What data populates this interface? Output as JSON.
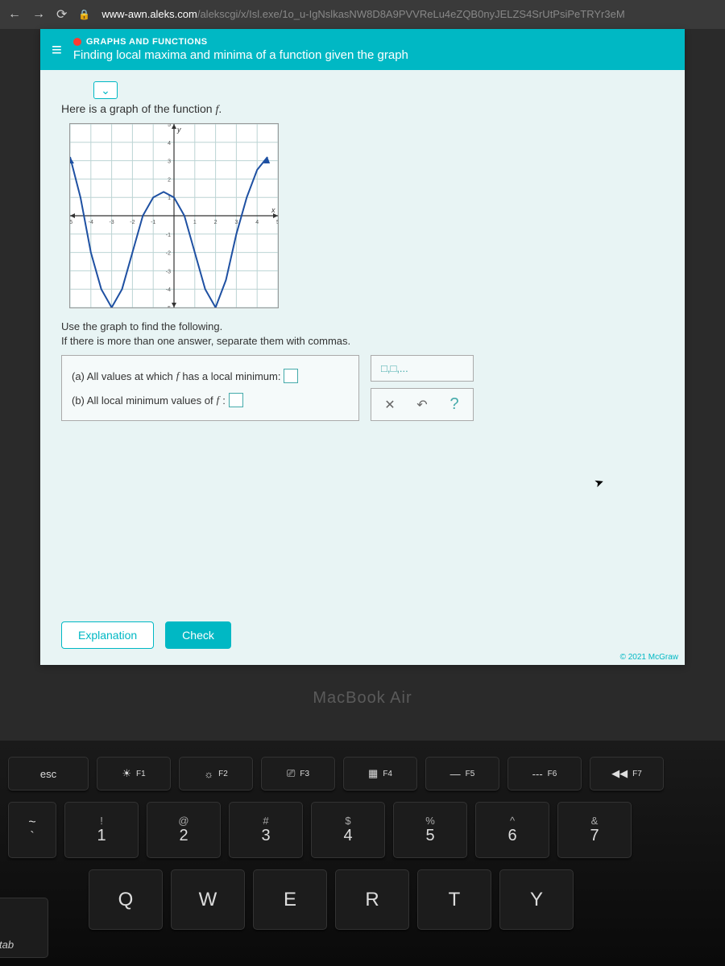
{
  "browser": {
    "url_host": "www-awn.aleks.com",
    "url_path": "/alekscgi/x/Isl.exe/1o_u-IgNslkasNW8D8A9PVVReLu4eZQB0nyJELZS4SrUtPsiPeTRYr3eM"
  },
  "header": {
    "category": "GRAPHS AND FUNCTIONS",
    "title": "Finding local maxima and minima of a function given the graph"
  },
  "intro_prefix": "Here is a graph of the function ",
  "intro_func": "f",
  "intro_suffix": ".",
  "instructions_line1": "Use the graph to find the following.",
  "instructions_line2": "If there is more than one answer, separate them with commas.",
  "questions": {
    "a_prefix": "(a) All values at which ",
    "a_func": "f",
    "a_suffix": " has a local minimum:",
    "b_prefix": "(b) All local minimum values of ",
    "b_func": "f",
    "b_suffix": ":"
  },
  "helper": {
    "comma_hint": "□,□,..."
  },
  "buttons": {
    "explanation": "Explanation",
    "check": "Check"
  },
  "copyright": "© 2021 McGraw",
  "macbook": "MacBook Air",
  "graph": {
    "xlim": [
      -5,
      5
    ],
    "ylim": [
      -5,
      5
    ],
    "tick_step": 1,
    "grid_color": "#bcd4d4",
    "axis_color": "#333333",
    "curve_color": "#1e50a2",
    "curve_width": 2,
    "points": [
      [
        -5,
        3.2
      ],
      [
        -4.5,
        1
      ],
      [
        -4,
        -2
      ],
      [
        -3.5,
        -4
      ],
      [
        -3,
        -5
      ],
      [
        -2.5,
        -4
      ],
      [
        -2,
        -2
      ],
      [
        -1.5,
        0
      ],
      [
        -1,
        1
      ],
      [
        -0.5,
        1.3
      ],
      [
        0,
        1
      ],
      [
        0.5,
        0
      ],
      [
        1,
        -2
      ],
      [
        1.5,
        -4
      ],
      [
        2,
        -5
      ],
      [
        2.5,
        -3.5
      ],
      [
        3,
        -1
      ],
      [
        3.5,
        1
      ],
      [
        4,
        2.5
      ],
      [
        4.5,
        3.2
      ]
    ]
  },
  "keyboard": {
    "fkeys": [
      {
        "sym": "☀",
        "label": "F1"
      },
      {
        "sym": "☼",
        "label": "F2"
      },
      {
        "sym": "⎚",
        "label": "F3"
      },
      {
        "sym": "▦",
        "label": "F4"
      },
      {
        "sym": "—",
        "label": "F5"
      },
      {
        "sym": "---",
        "label": "F6"
      },
      {
        "sym": "◀◀",
        "label": "F7"
      }
    ],
    "esc": "esc",
    "numrow": [
      {
        "top": "!",
        "bot": "1"
      },
      {
        "top": "@",
        "bot": "2"
      },
      {
        "top": "#",
        "bot": "3"
      },
      {
        "top": "$",
        "bot": "4"
      },
      {
        "top": "%",
        "bot": "5"
      },
      {
        "top": "^",
        "bot": "6"
      },
      {
        "top": "&",
        "bot": "7"
      }
    ],
    "tilde": {
      "top": "~",
      "bot": "`"
    },
    "letters": [
      "Q",
      "W",
      "E",
      "R",
      "T",
      "Y"
    ],
    "tab": "tab"
  }
}
